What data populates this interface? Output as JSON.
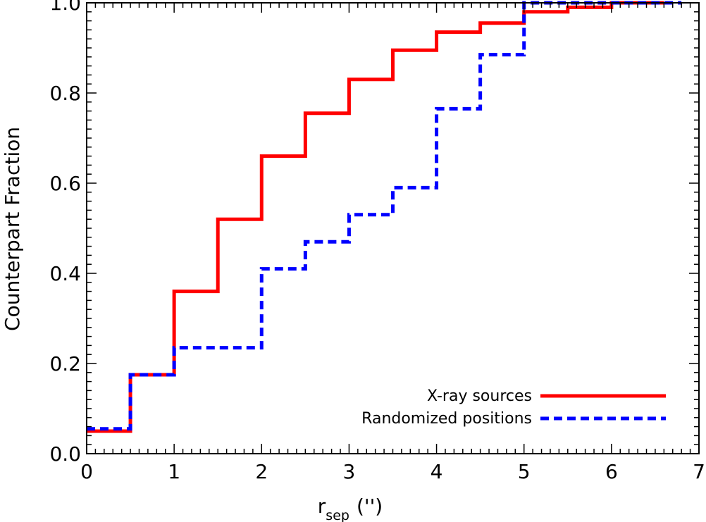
{
  "chart_data": {
    "type": "line",
    "step": true,
    "xlabel": "r",
    "xlabel_sub": "sep",
    "xlabel_unit": "('')",
    "ylabel": "Counterpart Fraction",
    "xlim": [
      0,
      7
    ],
    "ylim": [
      0,
      1.0
    ],
    "x_ticks": [
      "0",
      "1",
      "2",
      "3",
      "4",
      "5",
      "6",
      "7"
    ],
    "y_ticks": [
      "0.0",
      "0.2",
      "0.4",
      "0.6",
      "0.8",
      "1.0"
    ],
    "grid": false,
    "legend_position": "bottom-right",
    "series": [
      {
        "name": "X-ray sources",
        "color": "#ff0000",
        "style": "solid",
        "x": [
          0,
          0.5,
          1.0,
          1.5,
          2.0,
          2.5,
          3.0,
          3.5,
          4.0,
          4.5,
          5.0,
          5.5,
          6.0,
          6.6
        ],
        "y": [
          0.05,
          0.175,
          0.36,
          0.52,
          0.66,
          0.755,
          0.83,
          0.895,
          0.935,
          0.955,
          0.98,
          0.99,
          1.0,
          1.0
        ]
      },
      {
        "name": "Randomized positions",
        "color": "#0000ff",
        "style": "dashed",
        "x": [
          0,
          0.5,
          1.0,
          2.0,
          2.5,
          3.0,
          3.5,
          4.0,
          4.5,
          5.0,
          6.8
        ],
        "y": [
          0.055,
          0.175,
          0.235,
          0.41,
          0.47,
          0.53,
          0.59,
          0.765,
          0.885,
          1.0,
          1.0
        ]
      }
    ]
  }
}
